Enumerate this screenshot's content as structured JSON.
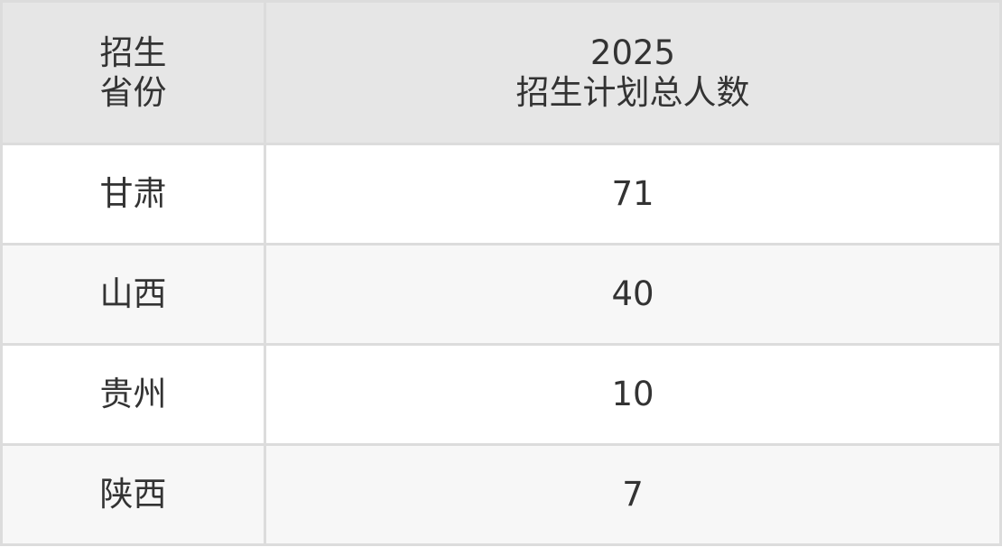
{
  "table": {
    "headers": [
      {
        "line1": "招生",
        "line2": "省份"
      },
      {
        "line1": "2025",
        "line2": "招生计划总人数"
      }
    ],
    "rows": [
      {
        "province": "甘肃",
        "total": "71"
      },
      {
        "province": "山西",
        "total": "40"
      },
      {
        "province": "贵州",
        "total": "10"
      },
      {
        "province": "陕西",
        "total": "7"
      }
    ]
  }
}
